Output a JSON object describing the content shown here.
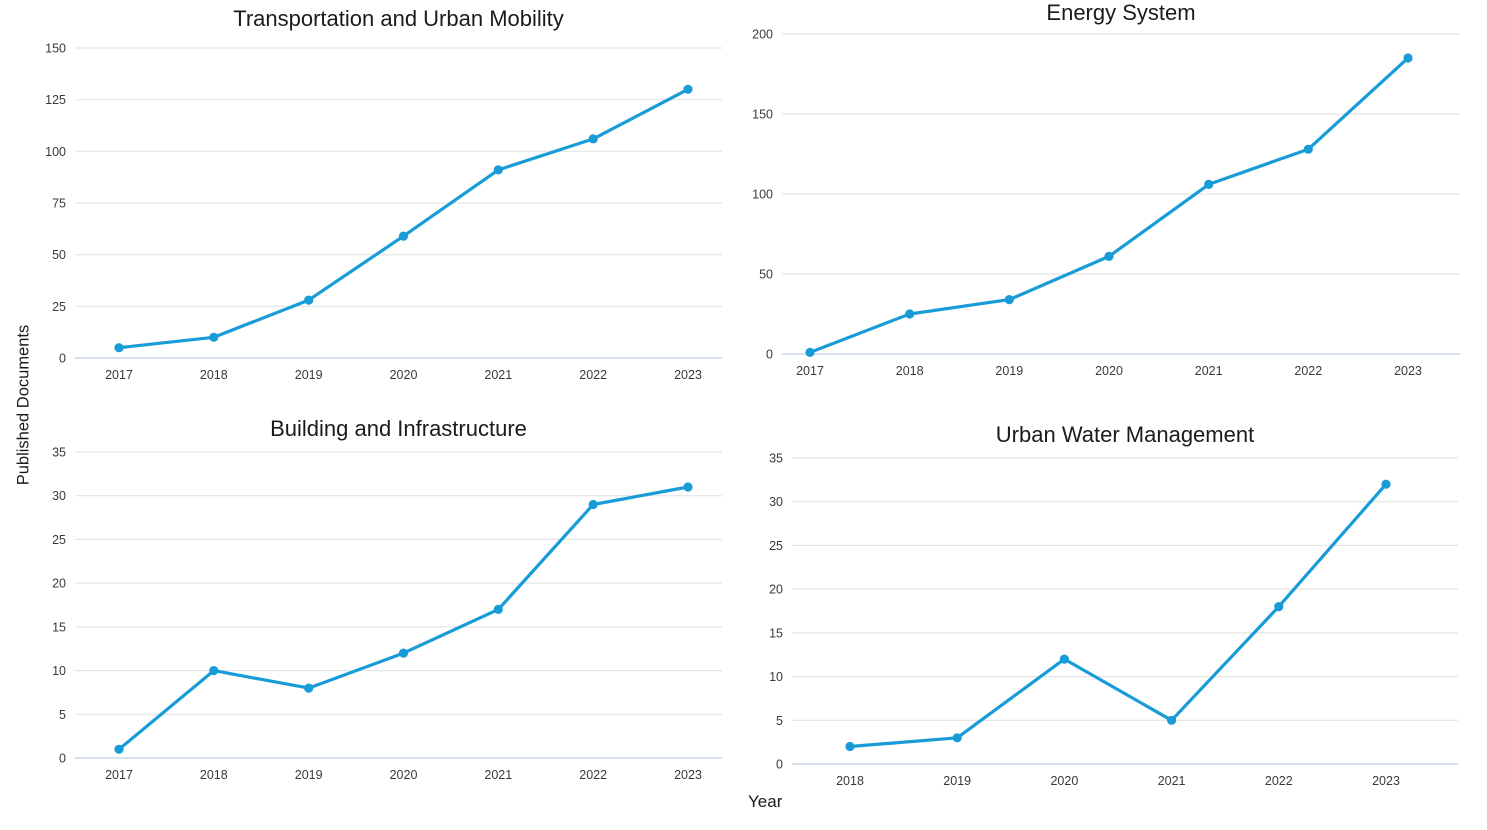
{
  "figure": {
    "ylabel": "Published Documents",
    "xlabel": "Year",
    "line_color": "#189cd8",
    "grid_color": "#e5e5e5",
    "zero_line_color": "#ccd6ea"
  },
  "chart_data": [
    {
      "type": "line",
      "title": "Transportation and Urban Mobility",
      "categories": [
        "2017",
        "2018",
        "2019",
        "2020",
        "2021",
        "2022",
        "2023"
      ],
      "values": [
        5,
        10,
        28,
        59,
        91,
        106,
        130
      ],
      "xlabel": "Year",
      "ylabel": "Published Documents",
      "ylim": [
        0,
        150
      ],
      "y_ticks": [
        0,
        25,
        50,
        75,
        100,
        125,
        150
      ],
      "grid": "horizontal",
      "legend": "none"
    },
    {
      "type": "line",
      "title": "Energy System",
      "categories": [
        "2017",
        "2018",
        "2019",
        "2020",
        "2021",
        "2022",
        "2023"
      ],
      "values": [
        1,
        25,
        34,
        61,
        106,
        128,
        185
      ],
      "xlabel": "Year",
      "ylabel": "Published Documents",
      "ylim": [
        0,
        200
      ],
      "y_ticks": [
        0,
        50,
        100,
        150,
        200
      ],
      "grid": "horizontal",
      "legend": "none"
    },
    {
      "type": "line",
      "title": "Building and Infrastructure",
      "categories": [
        "2017",
        "2018",
        "2019",
        "2020",
        "2021",
        "2022",
        "2023"
      ],
      "values": [
        1,
        10,
        8,
        12,
        17,
        29,
        31
      ],
      "xlabel": "Year",
      "ylabel": "Published Documents",
      "ylim": [
        0,
        35
      ],
      "y_ticks": [
        0,
        5,
        10,
        15,
        20,
        25,
        30,
        35
      ],
      "grid": "horizontal",
      "legend": "none"
    },
    {
      "type": "line",
      "title": "Urban Water Management",
      "categories": [
        "2018",
        "2019",
        "2020",
        "2021",
        "2022",
        "2023"
      ],
      "values": [
        2,
        3,
        12,
        5,
        18,
        32
      ],
      "xlabel": "Year",
      "ylabel": "Published Documents",
      "ylim": [
        0,
        35
      ],
      "y_ticks": [
        0,
        5,
        10,
        15,
        20,
        25,
        30,
        35
      ],
      "grid": "horizontal",
      "legend": "none"
    }
  ]
}
